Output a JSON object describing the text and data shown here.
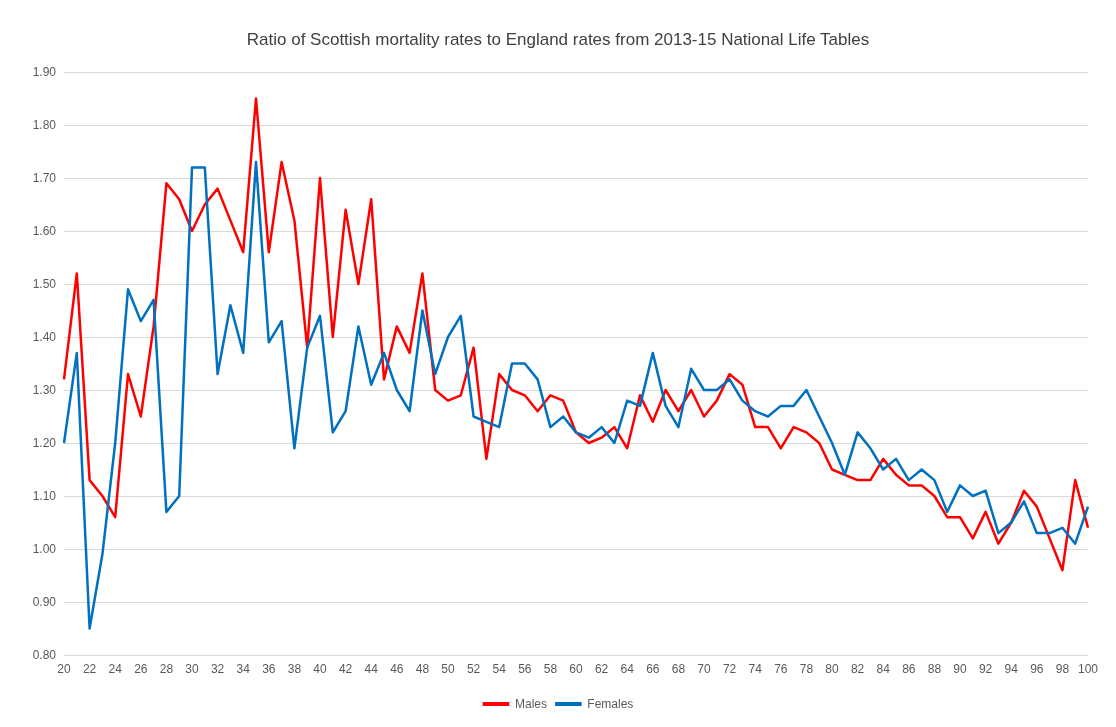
{
  "chart_data": {
    "type": "line",
    "title": "Ratio of Scottish mortality rates to England rates from 2013-15 National Life Tables",
    "categories": [
      "20",
      null,
      "22",
      null,
      "24",
      null,
      "26",
      null,
      "28",
      null,
      "30",
      null,
      "32",
      null,
      "34",
      null,
      "36",
      null,
      "38",
      null,
      "40",
      null,
      "42",
      null,
      "44",
      null,
      "46",
      null,
      "48",
      null,
      "50",
      null,
      "52",
      null,
      "54",
      null,
      "56",
      null,
      "58",
      null,
      "60",
      null,
      "62",
      null,
      "64",
      null,
      "66",
      null,
      "68",
      null,
      "70",
      null,
      "72",
      null,
      "74",
      null,
      "76",
      null,
      "78",
      null,
      "80",
      null,
      "82",
      null,
      "84",
      null,
      "86",
      null,
      "88",
      null,
      "90",
      null,
      "92",
      null,
      "94",
      null,
      "96",
      null,
      "98",
      null,
      "100"
    ],
    "series": [
      {
        "name": "Males",
        "color": "#ff0000",
        "values": [
          1.32,
          1.52,
          1.13,
          1.1,
          1.06,
          1.33,
          1.25,
          1.42,
          1.69,
          1.66,
          1.6,
          1.65,
          1.68,
          1.62,
          1.56,
          1.85,
          1.56,
          1.73,
          1.62,
          1.38,
          1.7,
          1.4,
          1.64,
          1.5,
          1.66,
          1.32,
          1.42,
          1.37,
          1.52,
          1.3,
          1.28,
          1.29,
          1.38,
          1.17,
          1.33,
          1.3,
          1.29,
          1.26,
          1.29,
          1.28,
          1.22,
          1.2,
          1.21,
          1.23,
          1.19,
          1.29,
          1.24,
          1.3,
          1.26,
          1.3,
          1.25,
          1.28,
          1.33,
          1.31,
          1.23,
          1.23,
          1.19,
          1.23,
          1.22,
          1.2,
          1.15,
          1.14,
          1.13,
          1.13,
          1.17,
          1.14,
          1.12,
          1.12,
          1.1,
          1.06,
          1.06,
          1.02,
          1.07,
          1.01,
          1.05,
          1.11,
          1.08,
          1.02,
          0.96,
          1.13,
          1.04
        ]
      },
      {
        "name": "Females",
        "color": "#0070c0",
        "values": [
          1.2,
          1.37,
          0.85,
          0.99,
          1.2,
          1.49,
          1.43,
          1.47,
          1.07,
          1.1,
          1.72,
          1.72,
          1.33,
          1.46,
          1.37,
          1.73,
          1.39,
          1.43,
          1.19,
          1.38,
          1.44,
          1.22,
          1.26,
          1.42,
          1.31,
          1.37,
          1.3,
          1.26,
          1.45,
          1.33,
          1.4,
          1.44,
          1.25,
          1.24,
          1.23,
          1.35,
          1.35,
          1.32,
          1.23,
          1.25,
          1.22,
          1.21,
          1.23,
          1.2,
          1.28,
          1.27,
          1.37,
          1.27,
          1.23,
          1.34,
          1.3,
          1.3,
          1.32,
          1.28,
          1.26,
          1.25,
          1.27,
          1.27,
          1.3,
          1.25,
          1.2,
          1.14,
          1.22,
          1.19,
          1.15,
          1.17,
          1.13,
          1.15,
          1.13,
          1.07,
          1.12,
          1.1,
          1.11,
          1.03,
          1.05,
          1.09,
          1.03,
          1.03,
          1.04,
          1.01,
          1.08
        ]
      }
    ],
    "ylim": [
      0.8,
      1.9
    ],
    "yticks": [
      {
        "value": 0.8,
        "label": "0.80"
      },
      {
        "value": 0.9,
        "label": "0.90"
      },
      {
        "value": 1.0,
        "label": "1.00"
      },
      {
        "value": 1.1,
        "label": "1.10"
      },
      {
        "value": 1.2,
        "label": "1.20"
      },
      {
        "value": 1.3,
        "label": "1.30"
      },
      {
        "value": 1.4,
        "label": "1.40"
      },
      {
        "value": 1.5,
        "label": "1.50"
      },
      {
        "value": 1.6,
        "label": "1.60"
      },
      {
        "value": 1.7,
        "label": "1.70"
      },
      {
        "value": 1.8,
        "label": "1.80"
      },
      {
        "value": 1.9,
        "label": "1.90"
      }
    ],
    "grid": "y",
    "legend": "bottom",
    "marker": "none",
    "line_style": "solid"
  }
}
